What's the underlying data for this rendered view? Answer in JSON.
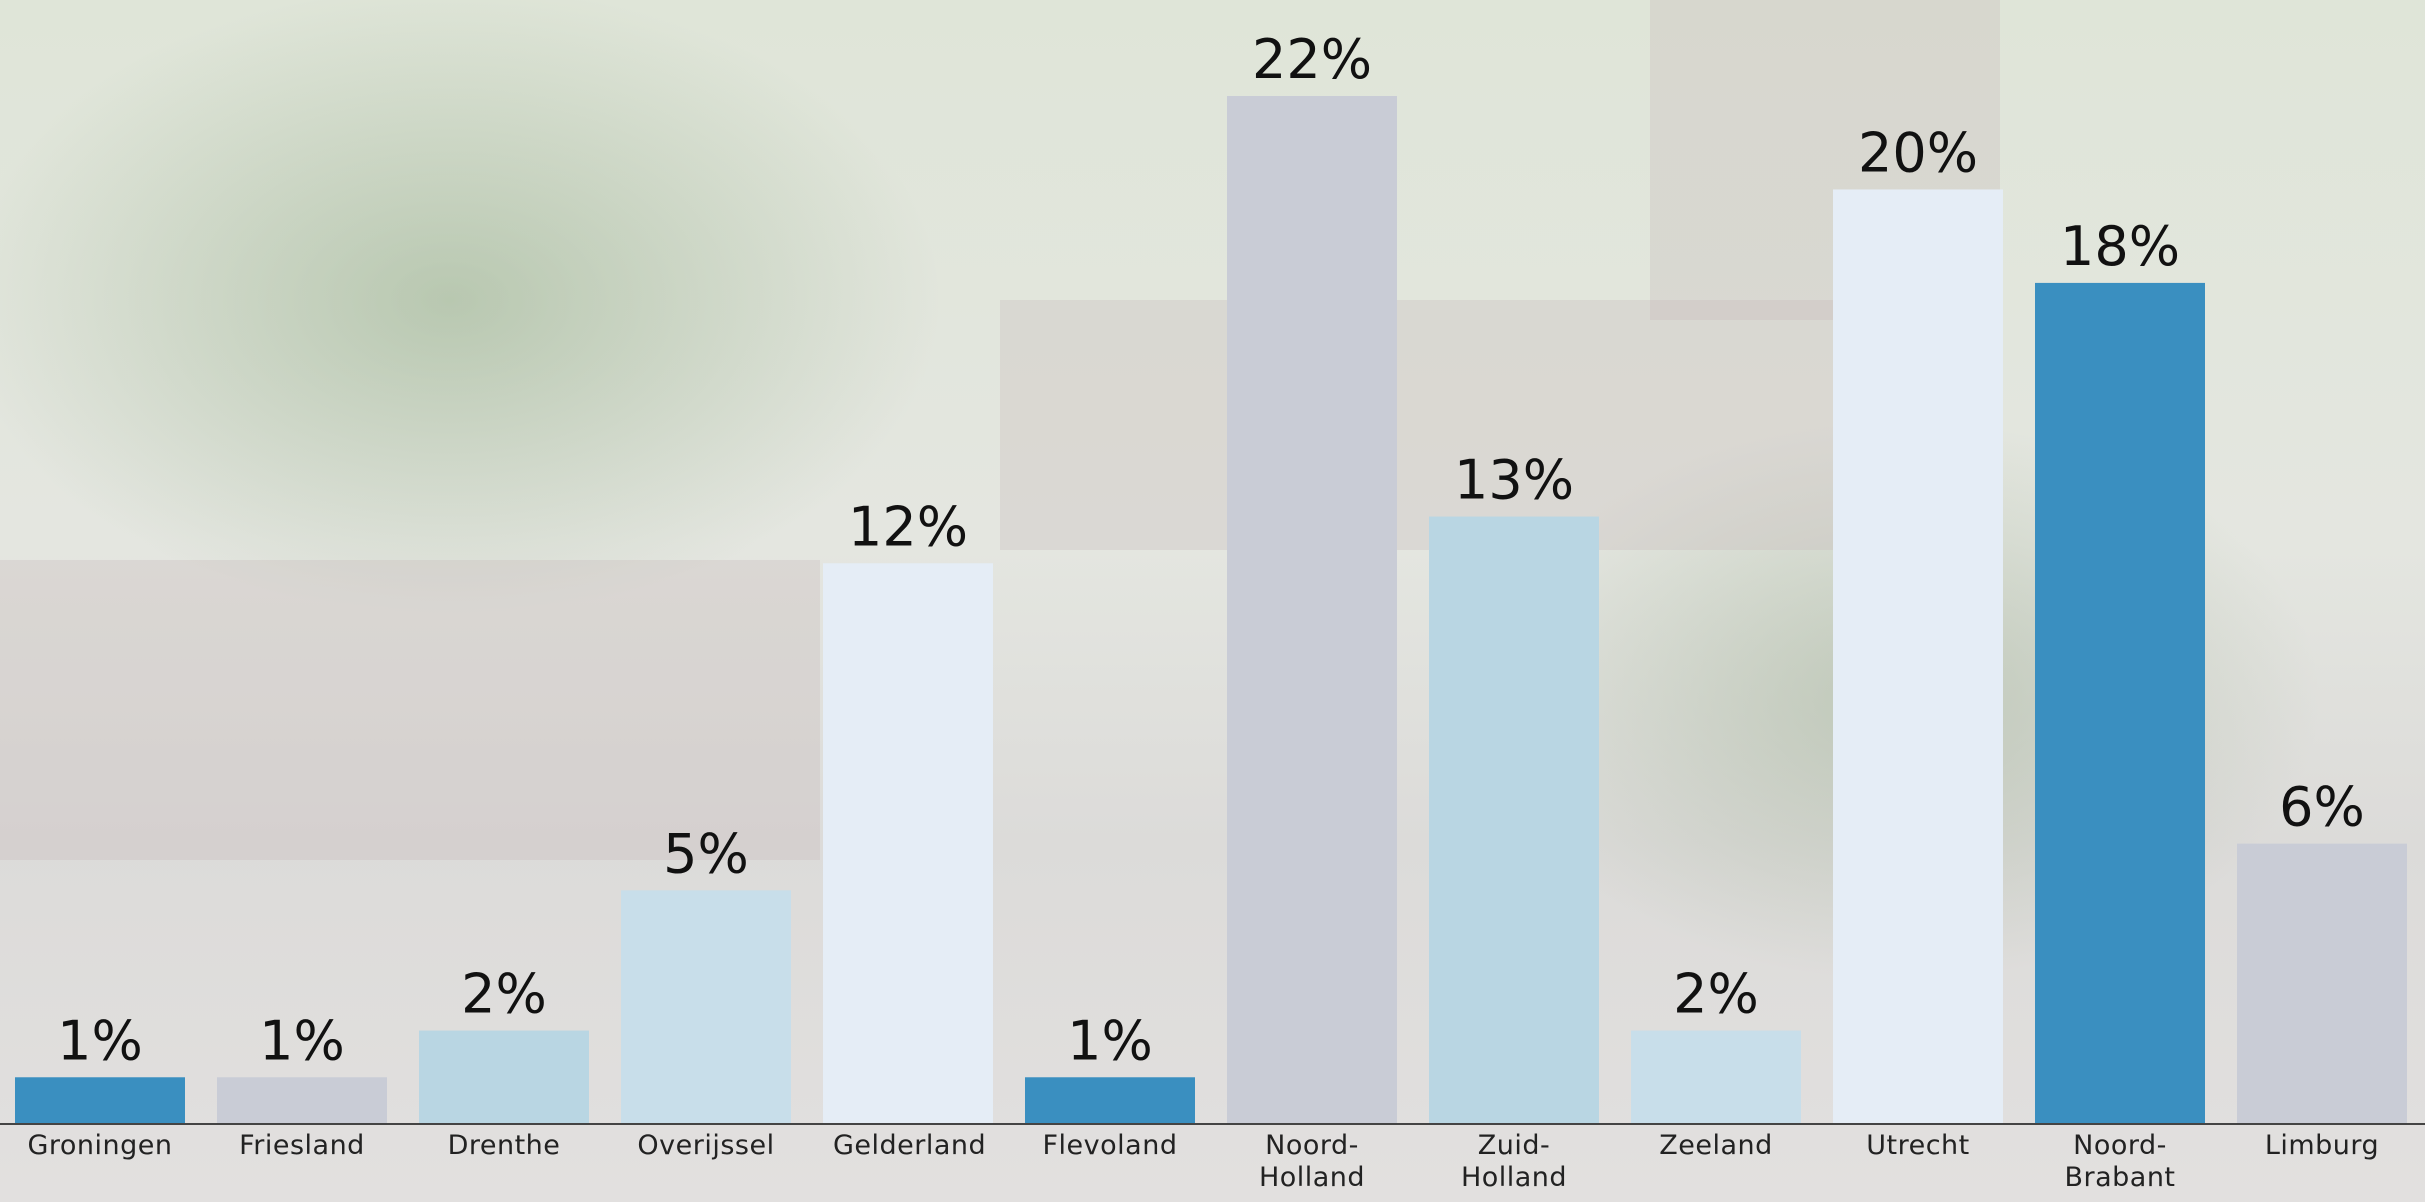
{
  "chart_data": {
    "type": "bar",
    "categories": [
      "Groningen",
      "Friesland",
      "Drenthe",
      "Overijssel",
      "Gelderland",
      "Flevoland",
      "Noord-Holland",
      "Zuid-Holland",
      "Zeeland",
      "Utrecht",
      "Noord-Brabant",
      "Limburg"
    ],
    "values": [
      1,
      1,
      2,
      5,
      12,
      1,
      22,
      13,
      2,
      20,
      18,
      6
    ],
    "value_labels": [
      "1%",
      "1%",
      "2%",
      "5%",
      "12%",
      "1%",
      "22%",
      "13%",
      "2%",
      "20%",
      "18%",
      "6%"
    ],
    "colors": [
      "#3a8fc0",
      "#c9ccd6",
      "#b9d6e3",
      "#c8deea",
      "#e5edf6",
      "#3a8fc0",
      "#c9ccd6",
      "#b9d6e3",
      "#c8deea",
      "#e5edf6",
      "#3a8fc0",
      "#c9ccd6"
    ]
  }
}
